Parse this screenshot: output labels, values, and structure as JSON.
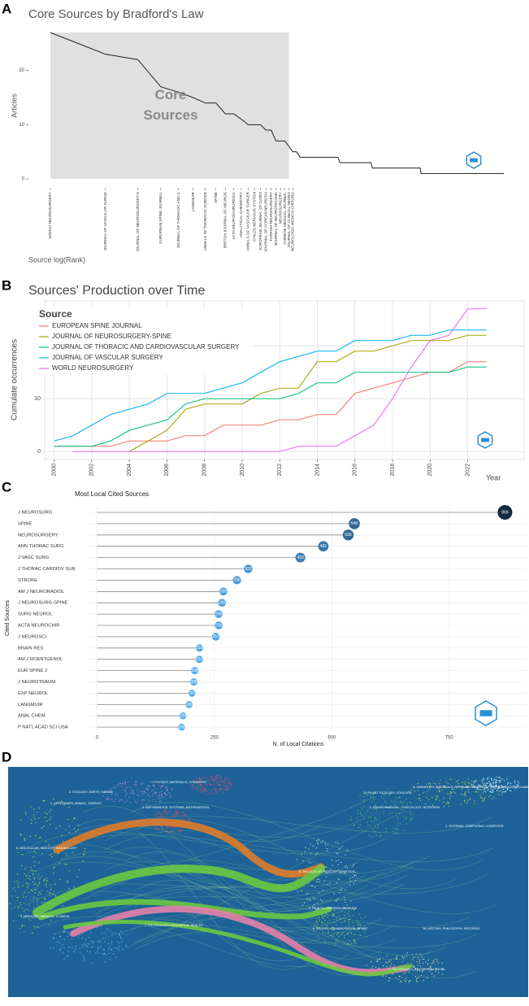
{
  "chart_data": [
    {
      "type": "line",
      "label": "A",
      "title": "Core Sources by Bradford's Law",
      "xlabel": "Source log(Rank)",
      "ylabel": "Articles",
      "xscale": "log",
      "color": "#222222",
      "core_label": "Core Sources",
      "core_until_rank": 20,
      "x": [
        1,
        2,
        3,
        4,
        5,
        6,
        7,
        8,
        9,
        10,
        11,
        12,
        13,
        14,
        15,
        16,
        17,
        18,
        19,
        20,
        21,
        22,
        23,
        37,
        38,
        56,
        57,
        104,
        105,
        297
      ],
      "values": [
        27,
        23,
        22,
        17,
        16,
        15,
        14,
        14,
        12,
        12,
        11,
        10,
        10,
        10,
        9,
        9,
        7,
        7,
        7,
        6,
        5,
        5,
        4,
        4,
        3,
        3,
        2,
        2,
        1,
        1
      ],
      "xlim": [
        1,
        297
      ],
      "ylim": [
        -1.5,
        28.5
      ],
      "yticks": [
        0,
        10,
        20
      ],
      "xticks": [
        {
          "value": 1,
          "label": "WORLD NEUROSURGERY"
        },
        {
          "value": 2,
          "label": "JOURNAL OF VASCULAR SURGE"
        },
        {
          "value": 3,
          "label": "JOURNAL OF NEUROSURGERY-S"
        },
        {
          "value": 4,
          "label": "EUROPEAN SPINE JOURNAL"
        },
        {
          "value": 5,
          "label": "JOURNAL OF THORACIC AND C"
        },
        {
          "value": 6,
          "label": "LANGMUIR"
        },
        {
          "value": 7,
          "label": "ANNALS OF THORACIC SURGER"
        },
        {
          "value": 8,
          "label": "SPINE"
        },
        {
          "value": 9,
          "label": "BRITISH JOURNAL OF NEUROS"
        },
        {
          "value": 10,
          "label": "ACTA NEUROCHIRURGICA"
        },
        {
          "value": 11,
          "label": "ANALYTICAL CHEMISTRY"
        },
        {
          "value": 12,
          "label": "ANNALS OF VASCULAR SURGER"
        },
        {
          "value": 13,
          "label": "CHILDS NERVOUS SYSTEM"
        },
        {
          "value": 14,
          "label": "EUROPEAN JOURNAL OF CARDI"
        },
        {
          "value": 15,
          "label": "JOURNAL OF KOREAN NEUROSU"
        },
        {
          "value": 16,
          "label": "TURKISH NEUROSURGERY"
        },
        {
          "value": 17,
          "label": "JOURNAL OF NEUROTRAUMA"
        },
        {
          "value": 18,
          "label": "NEUROSURGERY"
        },
        {
          "value": 19,
          "label": "CHINESE MEDICAL JOURNAL"
        },
        {
          "value": 20,
          "label": "JOURNAL OF CLINICAL NEURO"
        },
        {
          "value": 21,
          "label": "NEUROLOGIA MEDICO-CHIRURG"
        }
      ]
    },
    {
      "type": "line",
      "label": "B",
      "title": "Sources' Production over Time",
      "xlabel": "Year",
      "ylabel": "Cumulate occurrences",
      "legend_title": "Source",
      "legend": "upper-left",
      "grid": true,
      "x": [
        2000,
        2001,
        2002,
        2003,
        2004,
        2005,
        2006,
        2007,
        2008,
        2009,
        2010,
        2011,
        2012,
        2013,
        2014,
        2015,
        2016,
        2017,
        2018,
        2019,
        2020,
        2021,
        2022,
        2023
      ],
      "xlim": [
        1999.5,
        2025
      ],
      "ylim": [
        -1.5,
        28.5
      ],
      "xticks": [
        2000,
        2002,
        2004,
        2006,
        2008,
        2010,
        2012,
        2014,
        2016,
        2018,
        2020,
        2022
      ],
      "yticks": [
        0,
        10,
        20
      ],
      "series": [
        {
          "name": "EUROPEAN SPINE JOURNAL",
          "color": "#F8766D",
          "values": [
            1,
            1,
            1,
            1,
            2,
            2,
            2,
            3,
            3,
            5,
            5,
            5,
            6,
            6,
            7,
            7,
            11,
            12,
            13,
            14,
            15,
            15,
            17,
            17
          ]
        },
        {
          "name": "JOURNAL OF NEUROSURGERY-SPINE",
          "color": "#A3A500",
          "values": [
            null,
            null,
            null,
            null,
            0,
            2,
            4,
            8,
            9,
            9,
            9,
            11,
            12,
            12,
            17,
            17,
            19,
            19,
            20,
            21,
            21,
            21,
            22,
            22
          ]
        },
        {
          "name": "JOURNAL OF THORACIC AND CARDIOVASCULAR SURGERY",
          "color": "#00BF7D",
          "values": [
            1,
            1,
            1,
            2,
            4,
            5,
            6,
            9,
            10,
            10,
            10,
            10,
            10,
            11,
            13,
            13,
            15,
            15,
            15,
            15,
            15,
            15,
            16,
            16
          ]
        },
        {
          "name": "JOURNAL OF VASCULAR SURGERY",
          "color": "#00B0F6",
          "values": [
            2,
            3,
            5,
            7,
            8,
            9,
            11,
            11,
            11,
            12,
            13,
            15,
            17,
            18,
            19,
            19,
            21,
            21,
            21,
            22,
            22,
            23,
            23,
            23
          ]
        },
        {
          "name": "WORLD NEUROSURGERY",
          "color": "#E76BF3",
          "values": [
            null,
            0,
            0,
            0,
            0,
            0,
            0,
            0,
            0,
            0,
            0,
            0,
            0,
            1,
            1,
            1,
            3,
            5,
            10,
            16,
            21,
            22,
            27,
            27
          ]
        }
      ]
    },
    {
      "type": "lollipop",
      "label": "C",
      "title": "Most Local Cited Sources",
      "xlabel": "N. of Local Citations",
      "ylabel": "Cited Sources",
      "grid": true,
      "color_low": "#56B1F7",
      "color_high": "#132B43",
      "categories": [
        "J NEUROSURG",
        "SPINE",
        "NEUROSURGERY",
        "ANN THORAC SURG",
        "J VASC SURG",
        "J THORAC CARDIOV SUR",
        "STROKE",
        "AM J NEURORADIOL",
        "J NEUROSURG-SPINE",
        "SURG NEUROL",
        "ACTA NEUROCHIR",
        "J NEUROSCI",
        "BRAIN RES",
        "AM J ROENTGENOL",
        "EUR SPINE J",
        "J NEUROTRAUM",
        "EXP NEUROL",
        "LANGMUIR",
        "ANAL CHEM",
        "P NATL ACAD SCI USA"
      ],
      "values": [
        869,
        548,
        535,
        482,
        433,
        322,
        298,
        269,
        266,
        259,
        259,
        253,
        218,
        218,
        208,
        206,
        202,
        196,
        183,
        180
      ],
      "xlim": [
        -20,
        915
      ],
      "xticks": [
        0,
        250,
        500,
        750
      ]
    }
  ],
  "overlay_map": {
    "label": "D",
    "region_labels": [
      "7. PHYSICS, MATERIALS, CHEMISTRY",
      "3. ECOLOGY, EARTH, MARINE",
      "1. VETERINARY, ANIMAL, SCIENCE",
      "4. MATHEMATICS, SYSTEMS, MATHEMATICAL",
      "6. MOLECULAR, BIOLOGY, IMMUNOLOGY",
      "2. MEDICINE, MEDICAL, CLINICAL",
      "8. MOLECULAR, BIOLOGY, GENETICS",
      "5. HEALTH, NURSING, MEDICINE",
      "10. PLANT, ECOLOGY, ZOOLOGY",
      "3. CHEMISTRY, MATERIALS, PHYSICS",
      "1. MATHEMATICAL, MATHEMATICS, MECHANICS",
      "2. ENVIRONMENTAL, TOXICOLOGY, NUTRITION",
      "1. SYSTEMS, COMPUTING, COMPUTER",
      "7. PSYCHOLOGY, EDUCATION, HEALTH",
      "7. PSYCHOLOGY, EDUCATION, SOCIAL",
      "6. SPORTS, REHABILITATION, SPORT",
      "16. HISTORY, PHILOSOPHY, RECORDS"
    ]
  }
}
